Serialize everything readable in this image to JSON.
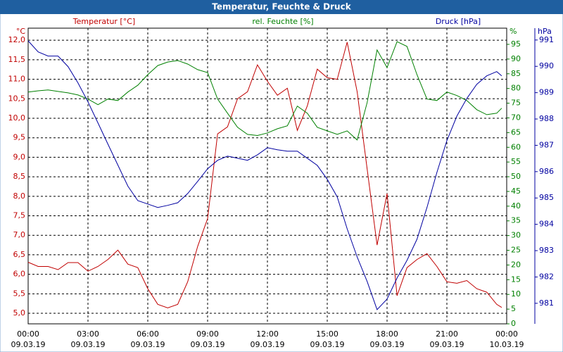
{
  "chart_data": {
    "type": "line",
    "title": "Temperatur, Feuchte & Druck",
    "y_label": "Temperatur [°C]",
    "y_unit": "°C",
    "y2_label": "rel. Feuchte [%]",
    "y2_unit": "%",
    "y3_label": "Druck [hPa]",
    "y3_unit": "hPa",
    "x": [
      0,
      0.5,
      1,
      1.5,
      2,
      2.5,
      3,
      3.5,
      4,
      4.5,
      5,
      5.5,
      6,
      6.5,
      7,
      7.5,
      8,
      8.5,
      9,
      9.5,
      10,
      10.5,
      11,
      11.5,
      12,
      12.5,
      13,
      13.5,
      14,
      14.5,
      15,
      15.5,
      16,
      16.5,
      17,
      17.5,
      18,
      18.5,
      19,
      19.5,
      20,
      20.5,
      21,
      21.5,
      22,
      22.5,
      23,
      23.5,
      23.75
    ],
    "xlim": [
      0,
      24
    ],
    "xticks": [
      {
        "value": 0,
        "label": "00:00"
      },
      {
        "value": 3,
        "label": "03:00"
      },
      {
        "value": 6,
        "label": "06:00"
      },
      {
        "value": 9,
        "label": "09:00"
      },
      {
        "value": 12,
        "label": "12:00"
      },
      {
        "value": 15,
        "label": "15:00"
      },
      {
        "value": 18,
        "label": "18:00"
      },
      {
        "value": 21,
        "label": "21:00"
      },
      {
        "value": 24,
        "label": "00:00"
      }
    ],
    "xtick_dates": [
      "09.03.19",
      "09.03.19",
      "09.03.19",
      "09.03.19",
      "09.03.19",
      "09.03.19",
      "09.03.19",
      "09.03.19",
      "10.03.19"
    ],
    "ylim": [
      4.73,
      12.31
    ],
    "yticks": [
      {
        "value": 5,
        "label": "5,0"
      },
      {
        "value": 5.5,
        "label": "5,5"
      },
      {
        "value": 6,
        "label": "6,0"
      },
      {
        "value": 6.5,
        "label": "6,5"
      },
      {
        "value": 7,
        "label": "7,0"
      },
      {
        "value": 7.5,
        "label": "7,5"
      },
      {
        "value": 8,
        "label": "8,0"
      },
      {
        "value": 8.5,
        "label": "8,5"
      },
      {
        "value": 9,
        "label": "9,0"
      },
      {
        "value": 9.5,
        "label": "9,5"
      },
      {
        "value": 10,
        "label": "10,0"
      },
      {
        "value": 10.5,
        "label": "10,5"
      },
      {
        "value": 11,
        "label": "11,0"
      },
      {
        "value": 11.5,
        "label": "11,5"
      },
      {
        "value": 12,
        "label": "12,0"
      }
    ],
    "y2lim": [
      0,
      100.5
    ],
    "y2ticks": [
      0,
      5,
      10,
      15,
      20,
      25,
      30,
      35,
      40,
      45,
      50,
      55,
      60,
      65,
      70,
      75,
      80,
      85,
      90,
      95
    ],
    "y3lim": [
      980.22,
      991.45
    ],
    "y3ticks": [
      981,
      982,
      983,
      984,
      985,
      986,
      987,
      988,
      989,
      990,
      991
    ],
    "grid": true,
    "series": [
      {
        "name": "Temperatur",
        "color": "#c00000",
        "axis": "y",
        "values": [
          6.31,
          6.2,
          6.2,
          6.12,
          6.3,
          6.3,
          6.08,
          6.2,
          6.38,
          6.62,
          6.26,
          6.17,
          5.63,
          5.23,
          5.14,
          5.23,
          5.81,
          6.71,
          7.43,
          9.6,
          9.78,
          10.5,
          10.68,
          11.37,
          10.95,
          10.59,
          10.77,
          9.69,
          10.32,
          11.26,
          11.04,
          11.0,
          11.95,
          10.68,
          8.7,
          6.75,
          8.07,
          5.45,
          6.17,
          6.38,
          6.53,
          6.2,
          5.81,
          5.77,
          5.84,
          5.63,
          5.54,
          5.23,
          5.15
        ]
      },
      {
        "name": "rel. Feuchte",
        "color": "#008000",
        "axis": "y2",
        "values": [
          78.8,
          79.2,
          79.5,
          79,
          78.5,
          77.8,
          76.4,
          74.5,
          76.4,
          75.9,
          78.8,
          81.1,
          84.7,
          87.8,
          89,
          89.5,
          88.3,
          86.4,
          85.4,
          76.4,
          71.6,
          66.8,
          64.4,
          64,
          64.9,
          66.3,
          67.3,
          74,
          71.6,
          66.8,
          65.6,
          64.4,
          65.6,
          62.5,
          75.2,
          93.1,
          87.1,
          95.9,
          94.3,
          84.7,
          76.4,
          75.9,
          78.8,
          77.6,
          75.9,
          72.8,
          71.1,
          71.6,
          73.3
        ]
      },
      {
        "name": "Druck",
        "color": "#0000a0",
        "axis": "y3",
        "values": [
          990.97,
          990.55,
          990.39,
          990.39,
          989.99,
          989.37,
          988.65,
          987.85,
          987.05,
          986.25,
          985.45,
          984.9,
          984.77,
          984.64,
          984.72,
          984.82,
          985.17,
          985.63,
          986.11,
          986.43,
          986.59,
          986.51,
          986.43,
          986.64,
          986.91,
          986.83,
          986.78,
          986.78,
          986.51,
          986.24,
          985.71,
          985.04,
          983.83,
          982.76,
          981.83,
          980.76,
          981.16,
          981.96,
          982.63,
          983.43,
          984.64,
          985.97,
          987.18,
          988.11,
          988.78,
          989.32,
          989.64,
          989.8,
          989.64
        ]
      }
    ]
  }
}
